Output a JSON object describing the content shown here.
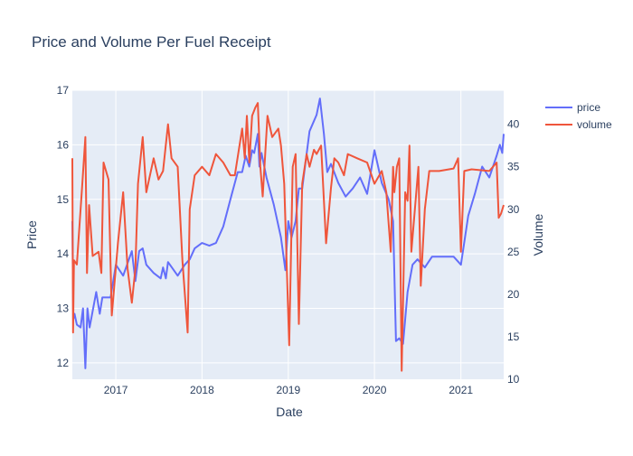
{
  "chart_data": {
    "type": "line",
    "title": "Price and Volume Per Fuel Receipt",
    "xlabel": "Date",
    "ylabel": "Price",
    "y2label": "Volume",
    "x_range": [
      "2016-07-01",
      "2021-07-01"
    ],
    "y_range": [
      11.7,
      17.0
    ],
    "y2_range": [
      10.0,
      44.0
    ],
    "x_ticks": [
      "2017-01-01",
      "2018-01-01",
      "2019-01-01",
      "2020-01-01",
      "2021-01-01"
    ],
    "x_tick_labels": [
      "2017",
      "2018",
      "2019",
      "2020",
      "2021"
    ],
    "y_ticks": [
      12,
      13,
      14,
      15,
      16,
      17
    ],
    "y2_ticks": [
      10,
      15,
      20,
      25,
      30,
      35,
      40
    ],
    "grid": true,
    "legend_position": "top-right",
    "series": [
      {
        "name": "price",
        "axis": "y",
        "color": "#636efa",
        "points": [
          [
            "2016-07-01",
            14.6
          ],
          [
            "2016-07-05",
            12.8
          ],
          [
            "2016-07-10",
            12.9
          ],
          [
            "2016-07-20",
            12.7
          ],
          [
            "2016-08-05",
            12.65
          ],
          [
            "2016-08-15",
            13.0
          ],
          [
            "2016-08-25",
            11.9
          ],
          [
            "2016-09-03",
            13.0
          ],
          [
            "2016-09-12",
            12.65
          ],
          [
            "2016-10-10",
            13.3
          ],
          [
            "2016-10-25",
            12.9
          ],
          [
            "2016-11-05",
            13.2
          ],
          [
            "2016-12-10",
            13.2
          ],
          [
            "2017-01-01",
            13.8
          ],
          [
            "2017-02-01",
            13.6
          ],
          [
            "2017-03-10",
            14.05
          ],
          [
            "2017-03-25",
            13.5
          ],
          [
            "2017-04-10",
            14.05
          ],
          [
            "2017-04-25",
            14.1
          ],
          [
            "2017-05-10",
            13.8
          ],
          [
            "2017-06-10",
            13.65
          ],
          [
            "2017-07-10",
            13.55
          ],
          [
            "2017-07-20",
            13.75
          ],
          [
            "2017-08-01",
            13.55
          ],
          [
            "2017-08-10",
            13.85
          ],
          [
            "2017-09-20",
            13.6
          ],
          [
            "2017-10-20",
            13.8
          ],
          [
            "2017-11-10",
            13.9
          ],
          [
            "2017-12-01",
            14.1
          ],
          [
            "2018-01-01",
            14.2
          ],
          [
            "2018-02-01",
            14.15
          ],
          [
            "2018-03-01",
            14.2
          ],
          [
            "2018-04-01",
            14.5
          ],
          [
            "2018-05-01",
            15.0
          ],
          [
            "2018-06-01",
            15.5
          ],
          [
            "2018-06-20",
            15.5
          ],
          [
            "2018-07-05",
            15.8
          ],
          [
            "2018-07-20",
            15.6
          ],
          [
            "2018-08-01",
            15.9
          ],
          [
            "2018-08-10",
            15.85
          ],
          [
            "2018-08-25",
            16.2
          ],
          [
            "2018-09-01",
            15.6
          ],
          [
            "2018-09-10",
            15.85
          ],
          [
            "2018-10-01",
            15.4
          ],
          [
            "2018-11-01",
            14.9
          ],
          [
            "2018-12-01",
            14.3
          ],
          [
            "2018-12-20",
            13.7
          ],
          [
            "2019-01-01",
            14.6
          ],
          [
            "2019-01-15",
            14.3
          ],
          [
            "2019-02-01",
            14.6
          ],
          [
            "2019-02-15",
            15.2
          ],
          [
            "2019-03-01",
            15.2
          ],
          [
            "2019-04-01",
            16.25
          ],
          [
            "2019-05-01",
            16.55
          ],
          [
            "2019-05-15",
            16.85
          ],
          [
            "2019-06-01",
            16.2
          ],
          [
            "2019-06-15",
            15.5
          ],
          [
            "2019-07-01",
            15.65
          ],
          [
            "2019-08-01",
            15.3
          ],
          [
            "2019-09-01",
            15.05
          ],
          [
            "2019-10-01",
            15.2
          ],
          [
            "2019-11-01",
            15.4
          ],
          [
            "2019-12-01",
            15.1
          ],
          [
            "2020-01-01",
            15.9
          ],
          [
            "2020-02-01",
            15.3
          ],
          [
            "2020-03-01",
            15.0
          ],
          [
            "2020-03-20",
            14.6
          ],
          [
            "2020-04-01",
            12.4
          ],
          [
            "2020-04-15",
            12.45
          ],
          [
            "2020-05-01",
            12.35
          ],
          [
            "2020-05-20",
            13.3
          ],
          [
            "2020-06-10",
            13.8
          ],
          [
            "2020-07-01",
            13.9
          ],
          [
            "2020-08-01",
            13.75
          ],
          [
            "2020-09-01",
            13.95
          ],
          [
            "2020-10-01",
            13.95
          ],
          [
            "2020-11-01",
            13.95
          ],
          [
            "2020-12-01",
            13.95
          ],
          [
            "2021-01-01",
            13.8
          ],
          [
            "2021-02-01",
            14.7
          ],
          [
            "2021-03-01",
            15.1
          ],
          [
            "2021-04-01",
            15.6
          ],
          [
            "2021-05-01",
            15.4
          ],
          [
            "2021-06-01",
            15.8
          ],
          [
            "2021-06-15",
            16.0
          ],
          [
            "2021-06-25",
            15.85
          ],
          [
            "2021-07-01",
            16.2
          ]
        ]
      },
      {
        "name": "volume",
        "axis": "y2",
        "color": "#ef553b",
        "points": [
          [
            "2016-07-01",
            36.0
          ],
          [
            "2016-07-04",
            15.5
          ],
          [
            "2016-07-08",
            24.0
          ],
          [
            "2016-07-20",
            23.5
          ],
          [
            "2016-08-10",
            32.0
          ],
          [
            "2016-08-25",
            38.5
          ],
          [
            "2016-09-01",
            22.5
          ],
          [
            "2016-09-10",
            30.5
          ],
          [
            "2016-09-25",
            24.5
          ],
          [
            "2016-10-20",
            25.0
          ],
          [
            "2016-11-01",
            22.5
          ],
          [
            "2016-11-10",
            35.5
          ],
          [
            "2016-12-01",
            33.5
          ],
          [
            "2016-12-15",
            17.5
          ],
          [
            "2017-01-10",
            26.0
          ],
          [
            "2017-02-01",
            32.0
          ],
          [
            "2017-02-20",
            23.0
          ],
          [
            "2017-03-10",
            19.0
          ],
          [
            "2017-03-25",
            23.0
          ],
          [
            "2017-04-05",
            33.0
          ],
          [
            "2017-04-25",
            38.5
          ],
          [
            "2017-05-10",
            32.0
          ],
          [
            "2017-06-10",
            36.0
          ],
          [
            "2017-07-01",
            33.5
          ],
          [
            "2017-07-20",
            34.5
          ],
          [
            "2017-08-10",
            40.0
          ],
          [
            "2017-08-25",
            36.0
          ],
          [
            "2017-09-20",
            35.0
          ],
          [
            "2017-10-10",
            24.0
          ],
          [
            "2017-11-01",
            15.5
          ],
          [
            "2017-11-10",
            30.0
          ],
          [
            "2017-12-01",
            34.0
          ],
          [
            "2018-01-01",
            35.0
          ],
          [
            "2018-02-01",
            34.0
          ],
          [
            "2018-03-01",
            36.5
          ],
          [
            "2018-04-01",
            35.5
          ],
          [
            "2018-05-01",
            34.0
          ],
          [
            "2018-05-20",
            34.0
          ],
          [
            "2018-06-20",
            39.5
          ],
          [
            "2018-07-01",
            36.0
          ],
          [
            "2018-07-10",
            41.0
          ],
          [
            "2018-07-20",
            35.5
          ],
          [
            "2018-08-01",
            41.0
          ],
          [
            "2018-08-15",
            42.0
          ],
          [
            "2018-08-25",
            42.5
          ],
          [
            "2018-09-05",
            35.0
          ],
          [
            "2018-09-15",
            31.5
          ],
          [
            "2018-10-05",
            41.0
          ],
          [
            "2018-10-25",
            38.5
          ],
          [
            "2018-11-20",
            39.5
          ],
          [
            "2018-12-01",
            37.5
          ],
          [
            "2018-12-15",
            33.0
          ],
          [
            "2019-01-05",
            14.0
          ],
          [
            "2019-01-20",
            35.0
          ],
          [
            "2019-02-01",
            36.5
          ],
          [
            "2019-02-15",
            16.5
          ],
          [
            "2019-03-01",
            33.0
          ],
          [
            "2019-03-20",
            36.5
          ],
          [
            "2019-04-01",
            35.0
          ],
          [
            "2019-04-20",
            37.0
          ],
          [
            "2019-05-01",
            36.5
          ],
          [
            "2019-05-20",
            37.5
          ],
          [
            "2019-06-10",
            26.0
          ],
          [
            "2019-07-01",
            32.5
          ],
          [
            "2019-07-15",
            36.0
          ],
          [
            "2019-08-01",
            35.5
          ],
          [
            "2019-08-25",
            34.0
          ],
          [
            "2019-09-10",
            36.5
          ],
          [
            "2019-10-20",
            36.0
          ],
          [
            "2019-12-01",
            35.5
          ],
          [
            "2020-01-01",
            33.0
          ],
          [
            "2020-02-01",
            34.5
          ],
          [
            "2020-02-20",
            32.0
          ],
          [
            "2020-03-10",
            25.0
          ],
          [
            "2020-03-20",
            35.0
          ],
          [
            "2020-03-25",
            32.0
          ],
          [
            "2020-04-05",
            35.0
          ],
          [
            "2020-04-15",
            36.0
          ],
          [
            "2020-04-25",
            11.0
          ],
          [
            "2020-05-10",
            32.0
          ],
          [
            "2020-05-20",
            31.0
          ],
          [
            "2020-05-28",
            37.5
          ],
          [
            "2020-06-05",
            25.0
          ],
          [
            "2020-06-20",
            30.0
          ],
          [
            "2020-07-05",
            35.0
          ],
          [
            "2020-07-15",
            21.0
          ],
          [
            "2020-08-01",
            30.0
          ],
          [
            "2020-08-20",
            34.5
          ],
          [
            "2020-10-01",
            34.5
          ],
          [
            "2020-12-01",
            34.8
          ],
          [
            "2020-12-20",
            36.0
          ],
          [
            "2021-01-01",
            25.0
          ],
          [
            "2021-01-15",
            34.5
          ],
          [
            "2021-02-15",
            34.7
          ],
          [
            "2021-05-01",
            34.5
          ],
          [
            "2021-06-01",
            35.5
          ],
          [
            "2021-06-10",
            29.0
          ],
          [
            "2021-06-20",
            29.5
          ],
          [
            "2021-07-01",
            30.5
          ]
        ]
      }
    ]
  }
}
